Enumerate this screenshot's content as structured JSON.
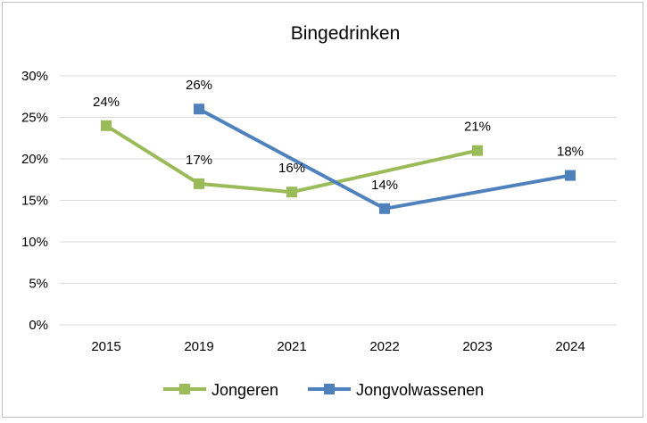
{
  "colors": {
    "jongeren": "#9bbb59",
    "jongvolwassenen": "#4f81bd",
    "grid": "#d9d9d9",
    "border": "#bfbfbf"
  },
  "chart_data": {
    "type": "line",
    "title": "Bingedrinken",
    "xlabel": "",
    "ylabel": "",
    "categories": [
      "2015",
      "2019",
      "2021",
      "2022",
      "2023",
      "2024"
    ],
    "ylim": [
      0,
      30
    ],
    "yticks": [
      "0%",
      "5%",
      "10%",
      "15%",
      "20%",
      "25%",
      "30%"
    ],
    "grid": true,
    "legend_position": "bottom",
    "series": [
      {
        "name": "Jongeren",
        "values": [
          24,
          17,
          16,
          null,
          21,
          null
        ],
        "labels": [
          "24%",
          "17%",
          "16%",
          "",
          "21%",
          ""
        ],
        "color": "#9bbb59",
        "marker": "square"
      },
      {
        "name": "Jongvolwassenen",
        "values": [
          null,
          26,
          null,
          14,
          null,
          18
        ],
        "labels": [
          "",
          "26%",
          "",
          "14%",
          "",
          "18%"
        ],
        "color": "#4f81bd",
        "marker": "square"
      }
    ]
  }
}
